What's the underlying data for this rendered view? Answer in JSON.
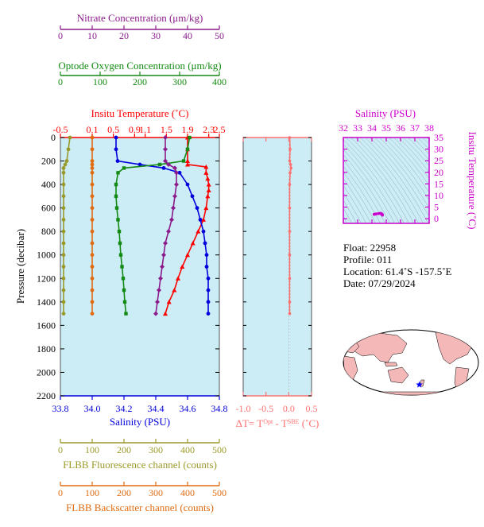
{
  "chart_data": [
    {
      "type": "line",
      "panel": "main-profile",
      "ylabel": "Pressure (decibar)",
      "ylim": [
        2200,
        0
      ],
      "y_ticks": [
        0,
        200,
        400,
        600,
        800,
        1000,
        1200,
        1400,
        1600,
        1800,
        2000,
        2200
      ],
      "axes": {
        "nitrate": {
          "label": "Nitrate Concentration (μm/kg)",
          "range": [
            0,
            50
          ],
          "ticks": [
            0,
            10,
            20,
            30,
            40,
            50
          ],
          "color": "#8b1a8b"
        },
        "oxygen": {
          "label": "Optode Oxygen Concentration (μm/kg)",
          "range": [
            0,
            400
          ],
          "ticks": [
            0,
            100,
            200,
            300,
            400
          ],
          "color": "#138a13"
        },
        "temperature": {
          "label": "Insitu Temperature (˚C)",
          "range": [
            -0.5,
            2.5
          ],
          "ticks": [
            -0.5,
            0.1,
            0.5,
            0.9,
            1.1,
            1.5,
            1.9,
            2.3,
            2.5
          ],
          "tick_labels": [
            "-0.5",
            "0.1",
            "0.5",
            "0.9",
            "1.1",
            "1.5",
            "1.9",
            "2.3",
            "2.5"
          ],
          "color": "#ff0000"
        },
        "salinity": {
          "label": "Salinity (PSU)",
          "range": [
            33.8,
            34.8
          ],
          "ticks": [
            33.8,
            34.0,
            34.2,
            34.4,
            34.6,
            34.8
          ],
          "tick_labels": [
            "33.8",
            "34.0",
            "34.2",
            "34.4",
            "34.6",
            "34.8"
          ],
          "color": "#0000dd"
        },
        "fluorescence": {
          "label": "FLBB Fluorescence channel (counts)",
          "range": [
            0,
            500
          ],
          "ticks": [
            0,
            100,
            200,
            300,
            400,
            500
          ],
          "color": "#9a9a2a"
        },
        "backscatter": {
          "label": "FLBB Backscatter channel (counts)",
          "range": [
            0,
            500
          ],
          "ticks": [
            0,
            100,
            200,
            300,
            400,
            500
          ],
          "color": "#e06b10"
        }
      },
      "series": [
        {
          "axis": "temperature",
          "color": "#ff0000",
          "marker": "triangle",
          "points": [
            [
              1.9,
              0
            ],
            [
              1.9,
              100
            ],
            [
              1.9,
              200
            ],
            [
              1.9,
              230
            ],
            [
              2.25,
              250
            ],
            [
              2.25,
              300
            ],
            [
              2.28,
              350
            ],
            [
              2.3,
              400
            ],
            [
              2.3,
              450
            ],
            [
              2.28,
              500
            ],
            [
              2.25,
              600
            ],
            [
              2.2,
              700
            ],
            [
              2.1,
              800
            ],
            [
              2.0,
              900
            ],
            [
              1.9,
              1000
            ],
            [
              1.8,
              1100
            ],
            [
              1.72,
              1200
            ],
            [
              1.65,
              1300
            ],
            [
              1.55,
              1400
            ],
            [
              1.48,
              1500
            ]
          ]
        },
        {
          "axis": "salinity",
          "color": "#0000dd",
          "marker": "circle",
          "points": [
            [
              34.15,
              0
            ],
            [
              34.15,
              100
            ],
            [
              34.16,
              200
            ],
            [
              34.3,
              230
            ],
            [
              34.45,
              260
            ],
            [
              34.55,
              300
            ],
            [
              34.6,
              400
            ],
            [
              34.63,
              500
            ],
            [
              34.66,
              600
            ],
            [
              34.68,
              700
            ],
            [
              34.7,
              800
            ],
            [
              34.71,
              900
            ],
            [
              34.72,
              1000
            ],
            [
              34.72,
              1100
            ],
            [
              34.73,
              1200
            ],
            [
              34.73,
              1300
            ],
            [
              34.73,
              1400
            ],
            [
              34.73,
              1500
            ]
          ]
        },
        {
          "axis": "oxygen",
          "color": "#138a13",
          "marker": "square",
          "points": [
            [
              325,
              0
            ],
            [
              320,
              100
            ],
            [
              310,
              200
            ],
            [
              250,
              230
            ],
            [
              160,
              260
            ],
            [
              145,
              300
            ],
            [
              140,
              400
            ],
            [
              140,
              500
            ],
            [
              142,
              600
            ],
            [
              145,
              700
            ],
            [
              148,
              800
            ],
            [
              150,
              900
            ],
            [
              152,
              1000
            ],
            [
              155,
              1100
            ],
            [
              158,
              1200
            ],
            [
              160,
              1300
            ],
            [
              162,
              1400
            ],
            [
              165,
              1500
            ]
          ]
        },
        {
          "axis": "nitrate",
          "color": "#8b1a8b",
          "marker": "diamond",
          "points": [
            [
              33,
              0
            ],
            [
              33,
              100
            ],
            [
              33,
              200
            ],
            [
              34,
              230
            ],
            [
              36,
              260
            ],
            [
              36.5,
              300
            ],
            [
              36.5,
              400
            ],
            [
              36,
              500
            ],
            [
              35.5,
              600
            ],
            [
              35,
              700
            ],
            [
              34,
              800
            ],
            [
              33,
              900
            ],
            [
              32.5,
              1000
            ],
            [
              32,
              1100
            ],
            [
              31.5,
              1200
            ],
            [
              31,
              1300
            ],
            [
              30.5,
              1400
            ],
            [
              30,
              1500
            ]
          ]
        },
        {
          "axis": "fluorescence",
          "color": "#9a9a2a",
          "marker": "circle",
          "points": [
            [
              30,
              0
            ],
            [
              25,
              100
            ],
            [
              20,
              200
            ],
            [
              15,
              230
            ],
            [
              10,
              260
            ],
            [
              10,
              300
            ],
            [
              10,
              400
            ],
            [
              10,
              500
            ],
            [
              10,
              600
            ],
            [
              10,
              700
            ],
            [
              10,
              800
            ],
            [
              10,
              900
            ],
            [
              10,
              1000
            ],
            [
              10,
              1100
            ],
            [
              10,
              1200
            ],
            [
              10,
              1300
            ],
            [
              10,
              1400
            ],
            [
              10,
              1500
            ]
          ]
        },
        {
          "axis": "backscatter",
          "color": "#e06b10",
          "marker": "circle",
          "points": [
            [
              100,
              0
            ],
            [
              100,
              100
            ],
            [
              100,
              200
            ],
            [
              100,
              230
            ],
            [
              100,
              260
            ],
            [
              100,
              300
            ],
            [
              100,
              400
            ],
            [
              100,
              500
            ],
            [
              100,
              600
            ],
            [
              100,
              700
            ],
            [
              100,
              800
            ],
            [
              100,
              900
            ],
            [
              100,
              1000
            ],
            [
              100,
              1100
            ],
            [
              100,
              1200
            ],
            [
              100,
              1300
            ],
            [
              100,
              1400
            ],
            [
              100,
              1500
            ]
          ]
        }
      ]
    },
    {
      "type": "line",
      "panel": "delta-t",
      "xlabel_parts": {
        "delta": "ΔT= T",
        "sup1": "Opt",
        "minus": " - T",
        "sup2": "SBE",
        "unit": " (˚C)"
      },
      "xlim": [
        -1.0,
        0.5
      ],
      "x_ticks": [
        -1.0,
        -0.5,
        0.0,
        0.5
      ],
      "x_tick_labels": [
        "-1.0",
        "-0.5",
        "0.0",
        "0.5"
      ],
      "ylim": [
        2200,
        0
      ],
      "color": "#ff7070",
      "points": [
        [
          0.02,
          0
        ],
        [
          0.03,
          100
        ],
        [
          0.02,
          200
        ],
        [
          0.04,
          230
        ],
        [
          0.05,
          260
        ],
        [
          0.03,
          300
        ],
        [
          0.02,
          400
        ],
        [
          0.02,
          600
        ],
        [
          0.02,
          800
        ],
        [
          0.02,
          1000
        ],
        [
          0.02,
          1200
        ],
        [
          0.02,
          1400
        ],
        [
          0.02,
          1500
        ]
      ]
    },
    {
      "type": "scatter",
      "panel": "ts-diagram",
      "xlabel": "Salinity (PSU)",
      "ylabel": "Insitu Temperature (˚C)",
      "xlim": [
        32,
        38
      ],
      "ylim": [
        -2,
        35
      ],
      "x_ticks": [
        32,
        33,
        34,
        35,
        36,
        37,
        38
      ],
      "y_ticks": [
        0,
        5,
        10,
        15,
        20,
        25,
        30,
        35
      ],
      "color": "#cc00cc",
      "points": [
        [
          34.15,
          1.9
        ],
        [
          34.2,
          1.95
        ],
        [
          34.3,
          2.1
        ],
        [
          34.45,
          2.2
        ],
        [
          34.55,
          2.3
        ],
        [
          34.6,
          2.3
        ],
        [
          34.63,
          2.25
        ],
        [
          34.66,
          2.2
        ],
        [
          34.68,
          2.1
        ],
        [
          34.7,
          2.0
        ],
        [
          34.71,
          1.9
        ],
        [
          34.72,
          1.8
        ],
        [
          34.73,
          1.7
        ],
        [
          34.73,
          1.55
        ]
      ]
    }
  ],
  "info": {
    "float": "Float:  22958",
    "profile": "Profile:  011",
    "location": "Location:  61.4˚S  -157.5˚E",
    "date": "Date:  07/29/2024"
  },
  "map": {
    "float_marker_lon": -157.5,
    "float_marker_lat": -61.4,
    "land_color": "#f4b8b8",
    "ocean_color": "#ffffff",
    "marker_color": "#0000ff"
  }
}
